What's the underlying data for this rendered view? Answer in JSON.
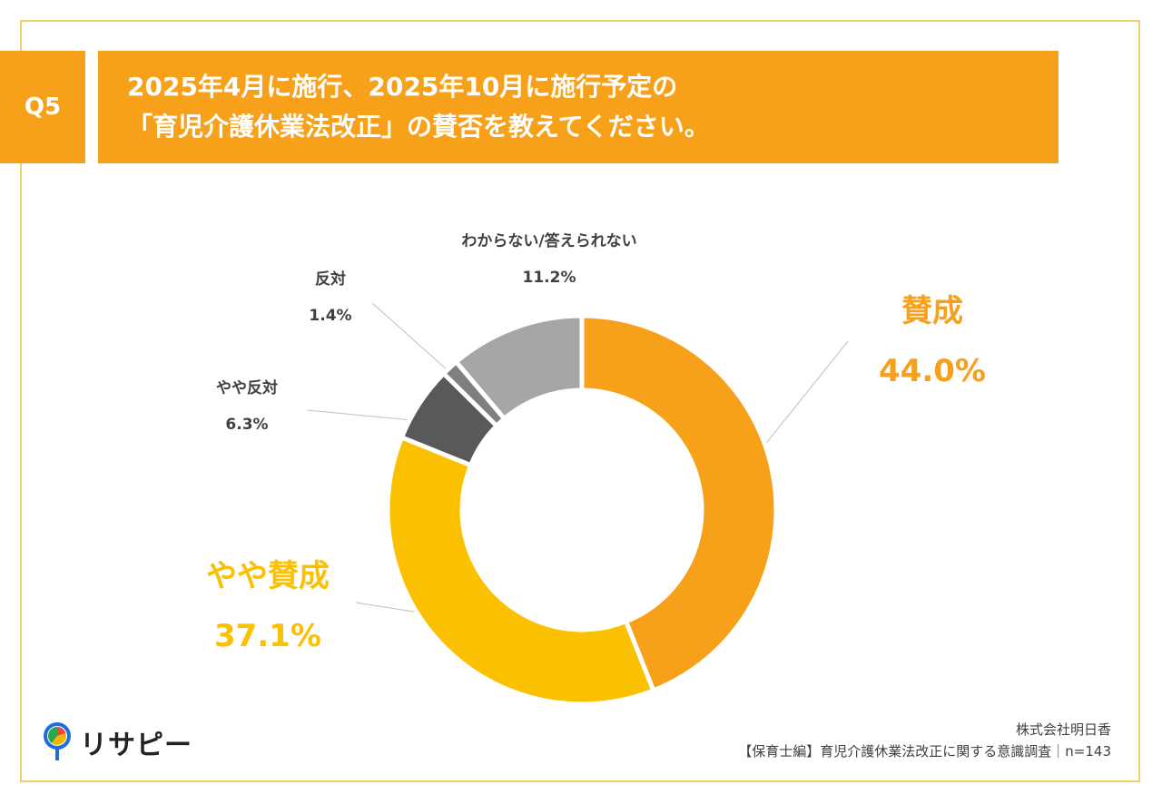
{
  "header": {
    "badge": "Q5",
    "title_line1": "2025年4月に施行、2025年10月に施行予定の",
    "title_line2": "「育児介護休業法改正」の賛否を教えてください。"
  },
  "colors": {
    "accent": "#f7a11a",
    "frame": "#f3cf6a"
  },
  "chart_data": {
    "type": "pie",
    "variant": "donut",
    "start": "top, clockwise",
    "title": "「育児介護休業法改正」の賛否",
    "labels": [
      "賛成",
      "やや賛成",
      "やや反対",
      "反対",
      "わからない/答えられない"
    ],
    "values": [
      44.0,
      37.1,
      6.3,
      1.4,
      11.2
    ],
    "value_labels": [
      "44.0%",
      "37.1%",
      "6.3%",
      "1.4%",
      "11.2%"
    ],
    "colors": [
      "#f7a11a",
      "#fbc000",
      "#595959",
      "#7f7f7f",
      "#a6a6a6"
    ]
  },
  "footer": {
    "company": "株式会社明日香",
    "survey": "【保育士編】育児介護休業法改正に関する意識調査｜n=143",
    "logo_text": "リサピー"
  }
}
